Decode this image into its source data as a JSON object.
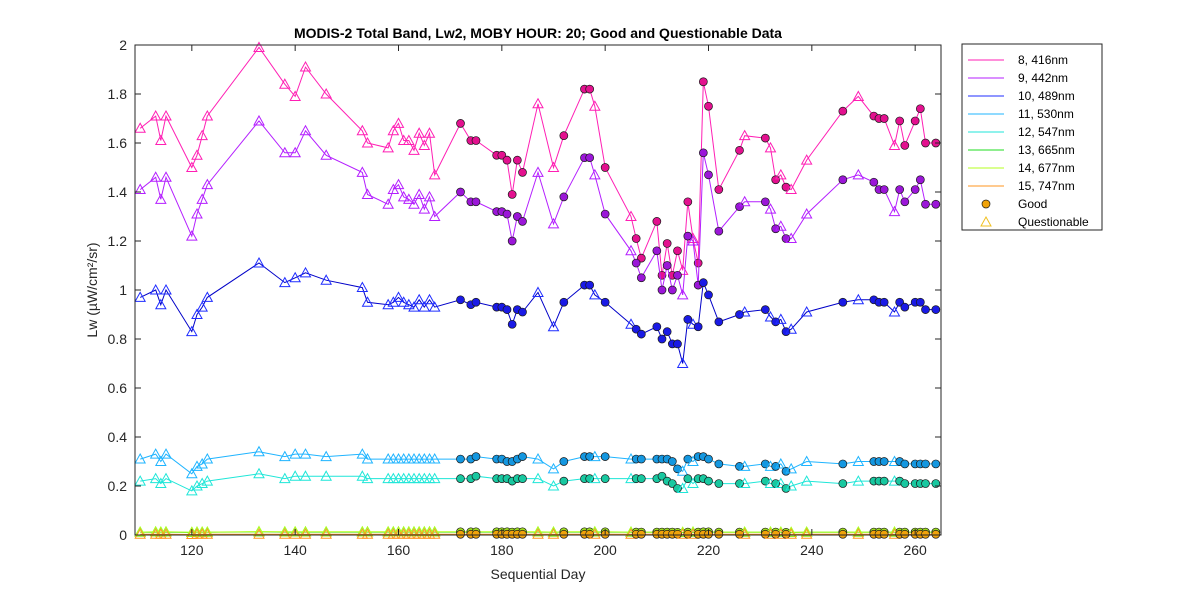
{
  "chart_data": {
    "type": "line",
    "title": "MODIS-2 Total Band,  Lw2, MOBY HOUR: 20;  Good and Questionable Data",
    "xlabel": "Sequential Day",
    "ylabel": "Lw (µW/cm²/sr)",
    "xlim": [
      109,
      265
    ],
    "ylim": [
      0,
      2
    ],
    "xticks": [
      "120",
      "140",
      "160",
      "180",
      "200",
      "220",
      "240",
      "260"
    ],
    "yticks": [
      "0",
      "0.2",
      "0.4",
      "0.6",
      "0.8",
      "1",
      "1.2",
      "1.4",
      "1.6",
      "1.8",
      "2"
    ],
    "grid": false,
    "legend_position": "outside-right-top",
    "marker_legend": [
      {
        "label": "Good",
        "marker": "circle",
        "color": "#f0a30a"
      },
      {
        "label": "Questionable",
        "marker": "triangle",
        "color": "#f0c020"
      }
    ],
    "x": [
      110,
      113,
      114,
      115,
      120,
      121,
      122,
      123,
      133,
      138,
      140,
      142,
      146,
      153,
      154,
      158,
      159,
      160,
      161,
      162,
      163,
      164,
      165,
      166,
      167,
      172,
      174,
      175,
      179,
      180,
      181,
      182,
      183,
      184,
      187,
      190,
      192,
      196,
      197,
      198,
      200,
      205,
      206,
      207,
      210,
      211,
      212,
      213,
      214,
      215,
      216,
      217,
      218,
      219,
      220,
      222,
      226,
      227,
      231,
      232,
      233,
      234,
      235,
      236,
      239,
      246,
      249,
      252,
      253,
      254,
      256,
      257,
      258,
      260,
      261,
      262,
      264
    ],
    "quality": [
      "Q",
      "Q",
      "Q",
      "Q",
      "Q",
      "Q",
      "Q",
      "Q",
      "Q",
      "Q",
      "Q",
      "Q",
      "Q",
      "Q",
      "Q",
      "Q",
      "Q",
      "Q",
      "Q",
      "Q",
      "Q",
      "Q",
      "Q",
      "Q",
      "Q",
      "G",
      "G",
      "G",
      "G",
      "G",
      "G",
      "G",
      "G",
      "G",
      "Q",
      "Q",
      "G",
      "G",
      "G",
      "Q",
      "G",
      "Q",
      "G",
      "G",
      "G",
      "G",
      "G",
      "G",
      "G",
      "Q",
      "G",
      "Q",
      "G",
      "G",
      "G",
      "G",
      "G",
      "Q",
      "G",
      "Q",
      "G",
      "Q",
      "G",
      "Q",
      "Q",
      "G",
      "Q",
      "G",
      "G",
      "G",
      "Q",
      "G",
      "G",
      "G",
      "G",
      "G",
      "G"
    ],
    "series": [
      {
        "name": "8, 416nm",
        "color": "#ff1fb4",
        "fill": "#e3118f",
        "values": [
          1.66,
          1.71,
          1.61,
          1.71,
          1.5,
          1.55,
          1.63,
          1.71,
          1.99,
          1.84,
          1.79,
          1.91,
          1.8,
          1.65,
          1.6,
          1.58,
          1.65,
          1.68,
          1.61,
          1.61,
          1.57,
          1.64,
          1.59,
          1.64,
          1.47,
          1.68,
          1.61,
          1.61,
          1.55,
          1.55,
          1.53,
          1.39,
          1.53,
          1.48,
          1.76,
          1.5,
          1.63,
          1.82,
          1.82,
          1.75,
          1.5,
          1.3,
          1.21,
          1.13,
          1.28,
          1.06,
          1.19,
          1.06,
          1.16,
          1.08,
          1.36,
          1.21,
          1.11,
          1.85,
          1.75,
          1.41,
          1.57,
          1.63,
          1.62,
          1.58,
          1.45,
          1.47,
          1.42,
          1.41,
          1.53,
          1.73,
          1.79,
          1.71,
          1.7,
          1.7,
          1.59,
          1.69,
          1.59,
          1.69,
          1.74,
          1.6,
          1.6
        ]
      },
      {
        "name": "9, 442nm",
        "color": "#b41fff",
        "fill": "#9b16d8",
        "values": [
          1.41,
          1.46,
          1.37,
          1.46,
          1.22,
          1.31,
          1.37,
          1.43,
          1.69,
          1.56,
          1.56,
          1.65,
          1.55,
          1.48,
          1.39,
          1.35,
          1.41,
          1.43,
          1.38,
          1.37,
          1.35,
          1.39,
          1.33,
          1.38,
          1.3,
          1.4,
          1.36,
          1.36,
          1.32,
          1.32,
          1.31,
          1.2,
          1.3,
          1.28,
          1.48,
          1.27,
          1.38,
          1.54,
          1.54,
          1.47,
          1.31,
          1.16,
          1.11,
          1.05,
          1.16,
          1.0,
          1.1,
          1.0,
          1.06,
          0.98,
          1.22,
          1.2,
          1.02,
          1.56,
          1.47,
          1.24,
          1.34,
          1.36,
          1.36,
          1.33,
          1.25,
          1.26,
          1.21,
          1.21,
          1.31,
          1.45,
          1.47,
          1.44,
          1.41,
          1.41,
          1.32,
          1.41,
          1.36,
          1.41,
          1.45,
          1.35,
          1.35
        ]
      },
      {
        "name": "10, 489nm",
        "color": "#1f2dff",
        "fill": "#1a1ae6",
        "values": [
          0.97,
          1.0,
          0.94,
          1.0,
          0.83,
          0.9,
          0.93,
          0.97,
          1.11,
          1.03,
          1.05,
          1.07,
          1.04,
          1.01,
          0.95,
          0.94,
          0.95,
          0.97,
          0.95,
          0.94,
          0.93,
          0.96,
          0.93,
          0.96,
          0.93,
          0.96,
          0.94,
          0.95,
          0.93,
          0.93,
          0.92,
          0.86,
          0.92,
          0.91,
          0.99,
          0.85,
          0.95,
          1.02,
          1.02,
          0.98,
          0.95,
          0.86,
          0.84,
          0.82,
          0.85,
          0.8,
          0.83,
          0.78,
          0.78,
          0.7,
          0.88,
          0.86,
          0.85,
          1.03,
          0.98,
          0.87,
          0.9,
          0.91,
          0.92,
          0.89,
          0.87,
          0.88,
          0.83,
          0.84,
          0.91,
          0.95,
          0.96,
          0.96,
          0.95,
          0.95,
          0.91,
          0.95,
          0.93,
          0.95,
          0.95,
          0.92,
          0.92
        ]
      },
      {
        "name": "11, 530nm",
        "color": "#1fb4ff",
        "fill": "#1497e0",
        "values": [
          0.31,
          0.33,
          0.3,
          0.33,
          0.25,
          0.28,
          0.29,
          0.31,
          0.34,
          0.32,
          0.33,
          0.33,
          0.32,
          0.33,
          0.31,
          0.31,
          0.31,
          0.31,
          0.31,
          0.31,
          0.31,
          0.31,
          0.31,
          0.31,
          0.31,
          0.31,
          0.31,
          0.32,
          0.31,
          0.31,
          0.3,
          0.3,
          0.31,
          0.32,
          0.31,
          0.27,
          0.3,
          0.32,
          0.32,
          0.32,
          0.32,
          0.31,
          0.31,
          0.31,
          0.31,
          0.31,
          0.31,
          0.3,
          0.27,
          0.26,
          0.31,
          0.3,
          0.32,
          0.32,
          0.31,
          0.29,
          0.28,
          0.28,
          0.29,
          0.28,
          0.28,
          0.29,
          0.26,
          0.27,
          0.3,
          0.29,
          0.3,
          0.3,
          0.3,
          0.3,
          0.3,
          0.3,
          0.29,
          0.29,
          0.29,
          0.29,
          0.29
        ]
      },
      {
        "name": "12, 547nm",
        "color": "#1fe6d8",
        "fill": "#18c8a0",
        "values": [
          0.22,
          0.23,
          0.21,
          0.23,
          0.18,
          0.2,
          0.21,
          0.22,
          0.25,
          0.23,
          0.24,
          0.24,
          0.24,
          0.24,
          0.23,
          0.23,
          0.23,
          0.23,
          0.23,
          0.23,
          0.23,
          0.23,
          0.23,
          0.23,
          0.23,
          0.23,
          0.23,
          0.24,
          0.23,
          0.23,
          0.23,
          0.22,
          0.23,
          0.23,
          0.23,
          0.2,
          0.22,
          0.23,
          0.23,
          0.23,
          0.23,
          0.23,
          0.23,
          0.23,
          0.23,
          0.24,
          0.22,
          0.21,
          0.19,
          0.19,
          0.23,
          0.21,
          0.23,
          0.23,
          0.22,
          0.21,
          0.21,
          0.21,
          0.22,
          0.21,
          0.21,
          0.21,
          0.19,
          0.2,
          0.22,
          0.21,
          0.22,
          0.22,
          0.22,
          0.22,
          0.22,
          0.22,
          0.21,
          0.21,
          0.21,
          0.21,
          0.21
        ]
      },
      {
        "name": "13, 665nm",
        "color": "#1fdc1f",
        "fill": "#20c820",
        "values": [
          0.011,
          0.012,
          0.011,
          0.012,
          0.01,
          0.011,
          0.011,
          0.011,
          0.013,
          0.012,
          0.012,
          0.012,
          0.012,
          0.012,
          0.012,
          0.012,
          0.012,
          0.012,
          0.012,
          0.012,
          0.012,
          0.012,
          0.012,
          0.012,
          0.012,
          0.012,
          0.012,
          0.012,
          0.012,
          0.012,
          0.012,
          0.011,
          0.012,
          0.012,
          0.012,
          0.011,
          0.012,
          0.012,
          0.012,
          0.012,
          0.012,
          0.011,
          0.011,
          0.011,
          0.011,
          0.011,
          0.011,
          0.011,
          0.01,
          0.01,
          0.011,
          0.011,
          0.011,
          0.012,
          0.012,
          0.011,
          0.011,
          0.011,
          0.011,
          0.011,
          0.011,
          0.011,
          0.01,
          0.01,
          0.011,
          0.011,
          0.011,
          0.011,
          0.011,
          0.011,
          0.011,
          0.011,
          0.011,
          0.011,
          0.011,
          0.011,
          0.011
        ]
      },
      {
        "name": "14, 677nm",
        "color": "#b4ff1f",
        "fill": "#a0e020",
        "values": [
          0.012,
          0.013,
          0.012,
          0.013,
          0.011,
          0.012,
          0.012,
          0.012,
          0.014,
          0.013,
          0.013,
          0.013,
          0.013,
          0.013,
          0.013,
          0.013,
          0.013,
          0.013,
          0.013,
          0.013,
          0.013,
          0.013,
          0.013,
          0.013,
          0.013,
          0.013,
          0.013,
          0.013,
          0.013,
          0.013,
          0.013,
          0.012,
          0.013,
          0.013,
          0.013,
          0.012,
          0.013,
          0.013,
          0.013,
          0.013,
          0.013,
          0.012,
          0.012,
          0.012,
          0.012,
          0.012,
          0.012,
          0.012,
          0.011,
          0.011,
          0.012,
          0.012,
          0.012,
          0.013,
          0.013,
          0.012,
          0.012,
          0.012,
          0.012,
          0.012,
          0.012,
          0.012,
          0.011,
          0.011,
          0.012,
          0.012,
          0.012,
          0.012,
          0.012,
          0.012,
          0.012,
          0.012,
          0.012,
          0.012,
          0.012,
          0.012,
          0.012
        ]
      },
      {
        "name": "15, 747nm",
        "color": "#ff961f",
        "fill": "#f0a30a",
        "values": [
          0.003,
          0.003,
          0.003,
          0.003,
          0.002,
          0.003,
          0.003,
          0.003,
          0.003,
          0.003,
          0.003,
          0.003,
          0.003,
          0.003,
          0.003,
          0.003,
          0.003,
          0.003,
          0.003,
          0.003,
          0.003,
          0.003,
          0.003,
          0.003,
          0.003,
          0.003,
          0.003,
          0.003,
          0.003,
          0.003,
          0.003,
          0.003,
          0.003,
          0.003,
          0.003,
          0.003,
          0.003,
          0.003,
          0.003,
          0.003,
          0.003,
          0.003,
          0.003,
          0.003,
          0.003,
          0.003,
          0.003,
          0.003,
          0.003,
          0.003,
          0.003,
          0.003,
          0.003,
          0.003,
          0.003,
          0.003,
          0.003,
          0.003,
          0.003,
          0.003,
          0.003,
          0.003,
          0.003,
          0.003,
          0.003,
          0.003,
          0.003,
          0.003,
          0.003,
          0.003,
          0.003,
          0.003,
          0.003,
          0.003,
          0.003,
          0.003,
          0.003
        ]
      }
    ],
    "series_line_colors": {
      "10, 489nm": "#0000c8"
    }
  }
}
